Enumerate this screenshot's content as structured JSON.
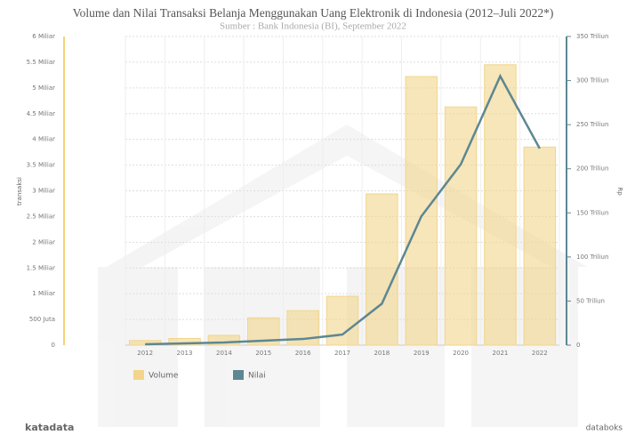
{
  "chart_data": {
    "type": "bar-line",
    "title": "Volume dan Nilai Transaksi Belanja Menggunakan Uang Elektronik di Indonesia (2012–Juli 2022*)",
    "subtitle": "Sumber : Bank Indonesia (BI), September 2022",
    "ylabel": "transaksi",
    "y2label": "Rp",
    "source_left": "katadata",
    "source_right": "databoks",
    "categories": [
      "2012",
      "2013",
      "2014",
      "2015",
      "2016",
      "2017",
      "2018",
      "2019",
      "2020",
      "2021",
      "2022"
    ],
    "series": [
      {
        "name": "Volume",
        "color": "#f2d58a",
        "kind": "bar",
        "values": [
          0.09,
          0.13,
          0.19,
          0.53,
          0.67,
          0.95,
          2.94,
          5.22,
          4.63,
          5.45,
          3.85
        ]
      },
      {
        "name": "Nilai",
        "color": "#5d8792",
        "kind": "line",
        "axis": "y2",
        "values": [
          1,
          2,
          3,
          5,
          7,
          12,
          47,
          146,
          205,
          305,
          223
        ]
      }
    ],
    "ylim": [
      0,
      6
    ],
    "yticks": [
      0,
      {
        "value": 0.5,
        "label": "500 Juta"
      },
      {
        "value": 1,
        "label": "1 Miliar"
      },
      {
        "value": 1.5,
        "label": "1.5 Miliar"
      },
      {
        "value": 2,
        "label": "2 Miliar"
      },
      {
        "value": 2.5,
        "label": "2.5 Miliar"
      },
      {
        "value": 3,
        "label": "3 Miliar"
      },
      {
        "value": 3.5,
        "label": "3.5 Miliar"
      },
      {
        "value": 4,
        "label": "4 Miliar"
      },
      {
        "value": 4.5,
        "label": "4.5 Miliar"
      },
      {
        "value": 5,
        "label": "5 Miliar"
      },
      {
        "value": 5.5,
        "label": "5.5 Miliar"
      },
      {
        "value": 6,
        "label": "6 Miliar"
      }
    ],
    "y2lim": [
      0,
      350
    ],
    "y2ticks": [
      0,
      {
        "value": 50,
        "label": "50 Triliun"
      },
      {
        "value": 100,
        "label": "100 Triliun"
      },
      {
        "value": 150,
        "label": "150 Triliun"
      },
      {
        "value": 200,
        "label": "200 Triliun"
      },
      {
        "value": 250,
        "label": "250 Triliun"
      },
      {
        "value": 300,
        "label": "300 Triliun"
      },
      {
        "value": 350,
        "label": "350 Triliun"
      }
    ],
    "grid": true
  }
}
